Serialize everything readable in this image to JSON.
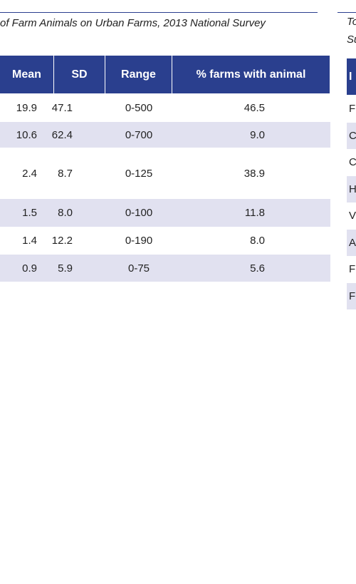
{
  "left_table": {
    "title": "of Farm Animals on Urban Farms, 2013 National Survey",
    "columns": [
      "Mean",
      "SD",
      "Range",
      "% farms with animal"
    ],
    "rows": [
      [
        "19.9",
        "47.1",
        "0-500",
        "46.5"
      ],
      [
        "10.6",
        "62.4",
        "0-700",
        "9.0"
      ],
      [
        "2.4",
        "8.7",
        "0-125",
        "38.9"
      ],
      [
        "1.5",
        "8.0",
        "0-100",
        "11.8"
      ],
      [
        "1.4",
        "12.2",
        "0-190",
        "8.0"
      ],
      [
        "0.9",
        "5.9",
        "0-75",
        "5.6"
      ]
    ]
  },
  "right_table": {
    "title_lines": [
      "To",
      "Su"
    ],
    "header": "I",
    "rows": [
      "F",
      "C",
      "C",
      "H",
      "V",
      "A",
      "F",
      "F"
    ]
  }
}
